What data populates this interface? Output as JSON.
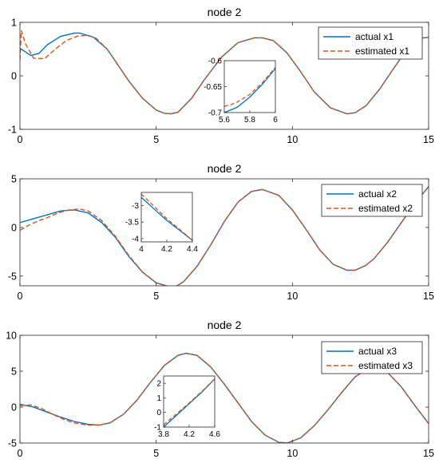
{
  "colors": {
    "actual": "#0072BD",
    "estimated": "#D95319",
    "axis": "#262626"
  },
  "chart_data": [
    {
      "type": "line",
      "title": "node 2",
      "xlim": [
        0,
        15
      ],
      "ylim": [
        -1,
        1
      ],
      "xticks": [
        0,
        5,
        10,
        15
      ],
      "yticks": [
        -1,
        0,
        1
      ],
      "legend_position": "top-right",
      "series": [
        {
          "name": "actual x1",
          "style": "solid",
          "x": [
            0,
            0.05,
            0.4,
            0.7,
            1.0,
            1.5,
            2.0,
            2.2,
            2.7,
            3.2,
            3.6,
            4.0,
            4.5,
            5.0,
            5.3,
            5.55,
            5.8,
            6.3,
            6.8,
            7.4,
            8.0,
            8.6,
            8.9,
            9.3,
            9.8,
            10.3,
            10.8,
            11.4,
            12.0,
            12.3,
            12.7,
            13.2,
            13.6,
            14.0,
            14.4,
            14.8,
            15.0
          ],
          "y": [
            0.47,
            0.5,
            0.38,
            0.42,
            0.58,
            0.74,
            0.8,
            0.8,
            0.72,
            0.5,
            0.2,
            -0.1,
            -0.42,
            -0.64,
            -0.7,
            -0.71,
            -0.68,
            -0.42,
            -0.05,
            0.35,
            0.62,
            0.71,
            0.71,
            0.66,
            0.43,
            0.08,
            -0.3,
            -0.6,
            -0.71,
            -0.69,
            -0.56,
            -0.25,
            0.05,
            0.35,
            0.58,
            0.71,
            0.72
          ]
        },
        {
          "name": "estimated x1",
          "style": "dashed",
          "x": [
            0,
            0.05,
            0.2,
            0.5,
            0.9,
            1.3,
            1.7,
            2.1,
            2.5,
            2.8,
            3.2,
            3.6,
            4.0,
            4.5,
            5.0,
            5.3,
            5.55,
            5.8,
            6.3,
            6.8,
            7.4,
            8.0,
            8.6,
            8.9,
            9.3,
            9.8,
            10.3,
            10.8,
            11.4,
            12.0,
            12.3,
            12.7,
            13.2,
            13.6,
            14.0,
            14.4,
            14.8,
            15.0
          ],
          "y": [
            0.3,
            0.85,
            0.6,
            0.33,
            0.32,
            0.5,
            0.66,
            0.74,
            0.76,
            0.7,
            0.5,
            0.2,
            -0.1,
            -0.42,
            -0.64,
            -0.7,
            -0.71,
            -0.68,
            -0.42,
            -0.05,
            0.35,
            0.62,
            0.71,
            0.71,
            0.66,
            0.43,
            0.08,
            -0.3,
            -0.6,
            -0.71,
            -0.69,
            -0.56,
            -0.25,
            0.05,
            0.35,
            0.58,
            0.71,
            0.72
          ]
        }
      ],
      "inset": {
        "xlim": [
          5.6,
          6
        ],
        "ylim": [
          -0.7,
          -0.6
        ],
        "xticks": [
          5.6,
          5.8,
          6
        ],
        "yticks": [
          -0.6,
          -0.65,
          -0.7
        ],
        "series": [
          {
            "name": "actual x1",
            "style": "solid",
            "x": [
              5.6,
              5.65,
              5.7,
              5.8,
              5.9,
              6.0
            ],
            "y": [
              -0.7,
              -0.695,
              -0.69,
              -0.67,
              -0.645,
              -0.615
            ]
          },
          {
            "name": "estimated x1",
            "style": "dashed",
            "x": [
              5.6,
              5.65,
              5.7,
              5.8,
              5.9,
              6.0
            ],
            "y": [
              -0.688,
              -0.685,
              -0.68,
              -0.665,
              -0.642,
              -0.613
            ]
          }
        ]
      }
    },
    {
      "type": "line",
      "title": "node 2",
      "xlim": [
        0,
        15
      ],
      "ylim": [
        -6,
        5
      ],
      "xticks": [
        0,
        5,
        10,
        15
      ],
      "yticks": [
        -5,
        0,
        5
      ],
      "legend_position": "top-right",
      "series": [
        {
          "name": "actual x2",
          "style": "solid",
          "x": [
            0,
            0.5,
            1.0,
            1.5,
            2.0,
            2.5,
            3.0,
            3.5,
            4.0,
            4.5,
            5.0,
            5.5,
            5.7,
            6.0,
            6.5,
            7.0,
            7.5,
            8.0,
            8.5,
            8.9,
            9.5,
            10.0,
            10.5,
            11.0,
            11.5,
            12.0,
            12.3,
            12.7,
            13.0,
            13.5,
            14.0,
            14.5,
            15.0
          ],
          "y": [
            0.5,
            0.9,
            1.3,
            1.7,
            1.8,
            1.5,
            0.5,
            -1.0,
            -3.0,
            -4.6,
            -5.7,
            -6.1,
            -6.1,
            -5.6,
            -4.0,
            -1.8,
            0.6,
            2.6,
            3.7,
            3.9,
            3.3,
            1.8,
            -0.2,
            -2.3,
            -3.8,
            -4.4,
            -4.4,
            -3.9,
            -3.2,
            -1.5,
            0.5,
            2.5,
            4.2
          ]
        },
        {
          "name": "estimated x2",
          "style": "dashed",
          "x": [
            0,
            0.3,
            0.7,
            1.0,
            1.4,
            1.8,
            2.2,
            2.5,
            3.0,
            3.5,
            4.0,
            4.5,
            5.0,
            5.5,
            5.7,
            6.0,
            6.5,
            7.0,
            7.5,
            8.0,
            8.5,
            8.9,
            9.5,
            10.0,
            10.5,
            11.0,
            11.5,
            12.0,
            12.3,
            12.7,
            13.0,
            13.5,
            14.0,
            14.5,
            15.0
          ],
          "y": [
            -0.3,
            0.2,
            0.7,
            1.0,
            1.5,
            1.8,
            1.9,
            1.7,
            0.7,
            -0.9,
            -2.9,
            -4.6,
            -5.7,
            -6.1,
            -6.1,
            -5.6,
            -4.0,
            -1.8,
            0.6,
            2.6,
            3.7,
            3.9,
            3.3,
            1.8,
            -0.2,
            -2.3,
            -3.8,
            -4.4,
            -4.4,
            -3.9,
            -3.2,
            -1.5,
            0.5,
            2.5,
            4.2
          ]
        }
      ],
      "inset": {
        "xlim": [
          4,
          4.4
        ],
        "ylim": [
          -4.1,
          -2.6
        ],
        "xticks": [
          4,
          4.2,
          4.4
        ],
        "yticks": [
          -3,
          -3.5,
          -4
        ],
        "series": [
          {
            "name": "actual x2",
            "style": "solid",
            "x": [
              4.0,
              4.1,
              4.2,
              4.3,
              4.4
            ],
            "y": [
              -2.75,
              -3.1,
              -3.45,
              -3.75,
              -4.05
            ]
          },
          {
            "name": "estimated x2",
            "style": "dashed",
            "x": [
              4.0,
              4.1,
              4.2,
              4.3,
              4.4
            ],
            "y": [
              -2.65,
              -3.02,
              -3.4,
              -3.72,
              -4.05
            ]
          }
        ]
      }
    },
    {
      "type": "line",
      "title": "node 2",
      "xlim": [
        0,
        15
      ],
      "ylim": [
        -5,
        10
      ],
      "xticks": [
        0,
        5,
        10,
        15
      ],
      "yticks": [
        -5,
        0,
        5,
        10
      ],
      "legend_position": "top-right",
      "series": [
        {
          "name": "actual x3",
          "style": "solid",
          "x": [
            0,
            0.5,
            1.0,
            1.5,
            2.0,
            2.5,
            2.9,
            3.3,
            3.8,
            4.3,
            4.8,
            5.3,
            5.8,
            6.1,
            6.5,
            7.0,
            7.5,
            8.0,
            8.5,
            9.0,
            9.5,
            9.8,
            10.3,
            10.8,
            11.3,
            11.8,
            12.3,
            12.7,
            13.1,
            13.5,
            14.0,
            14.5,
            15.0
          ],
          "y": [
            0.4,
            0.0,
            -0.7,
            -1.4,
            -2.0,
            -2.4,
            -2.5,
            -2.2,
            -1.0,
            1.0,
            3.5,
            5.8,
            7.2,
            7.5,
            7.2,
            5.6,
            3.2,
            0.6,
            -2.0,
            -3.9,
            -4.9,
            -5.0,
            -4.3,
            -2.6,
            -0.4,
            2.0,
            4.2,
            5.2,
            5.4,
            4.8,
            2.8,
            0.2,
            -2.3
          ]
        },
        {
          "name": "estimated x3",
          "style": "dashed",
          "x": [
            0,
            0.4,
            0.8,
            1.2,
            1.6,
            2.0,
            2.5,
            2.9,
            3.3,
            3.8,
            4.3,
            4.8,
            5.3,
            5.8,
            6.1,
            6.5,
            7.0,
            7.5,
            8.0,
            8.5,
            9.0,
            9.5,
            9.8,
            10.3,
            10.8,
            11.3,
            11.8,
            12.3,
            12.7,
            13.1,
            13.5,
            14.0,
            14.5,
            15.0
          ],
          "y": [
            0.2,
            0.3,
            -0.2,
            -1.0,
            -1.7,
            -2.2,
            -2.5,
            -2.5,
            -2.2,
            -1.0,
            1.0,
            3.5,
            5.8,
            7.2,
            7.5,
            7.2,
            5.6,
            3.2,
            0.6,
            -2.0,
            -3.9,
            -4.9,
            -5.0,
            -4.3,
            -2.6,
            -0.4,
            2.0,
            4.2,
            5.2,
            5.4,
            4.8,
            2.8,
            0.2,
            -2.3
          ]
        }
      ],
      "inset": {
        "xlim": [
          3.8,
          4.6
        ],
        "ylim": [
          -1,
          2.5
        ],
        "xticks": [
          3.8,
          4.2,
          4.6
        ],
        "yticks": [
          2,
          1,
          0,
          -1
        ],
        "series": [
          {
            "name": "actual x3",
            "style": "solid",
            "x": [
              3.8,
              4.0,
              4.2,
              4.4,
              4.6
            ],
            "y": [
              -1.0,
              -0.2,
              0.6,
              1.4,
              2.3
            ]
          },
          {
            "name": "estimated x3",
            "style": "dashed",
            "x": [
              3.8,
              4.0,
              4.2,
              4.4,
              4.6
            ],
            "y": [
              -0.85,
              -0.1,
              0.65,
              1.45,
              2.3
            ]
          }
        ]
      }
    }
  ]
}
